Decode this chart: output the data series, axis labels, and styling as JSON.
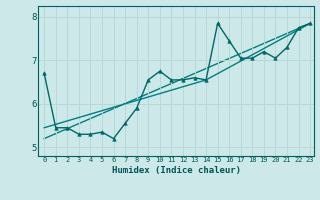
{
  "xlabel": "Humidex (Indice chaleur)",
  "ylabel": "",
  "bg_color": "#cce8e8",
  "grid_color": "#b8d8d8",
  "line_color1": "#006868",
  "line_color2": "#008080",
  "xlim": [
    -0.5,
    23.3
  ],
  "ylim": [
    4.8,
    8.25
  ],
  "yticks": [
    5,
    6,
    7,
    8
  ],
  "xticks": [
    0,
    1,
    2,
    3,
    4,
    5,
    6,
    7,
    8,
    9,
    10,
    11,
    12,
    13,
    14,
    15,
    16,
    17,
    18,
    19,
    20,
    21,
    22,
    23
  ],
  "line1_x": [
    0,
    1,
    2,
    3,
    4,
    5,
    6,
    7,
    8,
    9,
    10,
    11,
    12,
    13,
    14,
    15,
    16,
    17,
    18,
    19,
    20,
    21,
    22,
    23
  ],
  "line1_y": [
    6.7,
    5.45,
    5.45,
    5.3,
    5.3,
    5.35,
    5.2,
    5.55,
    5.9,
    6.55,
    6.75,
    6.55,
    6.55,
    6.6,
    6.55,
    7.85,
    7.45,
    7.05,
    7.05,
    7.2,
    7.05,
    7.3,
    7.75,
    7.85
  ],
  "line2_x": [
    0,
    14,
    23
  ],
  "line2_y": [
    5.45,
    6.55,
    7.85
  ],
  "line3_x": [
    0,
    23
  ],
  "line3_y": [
    5.2,
    7.85
  ]
}
